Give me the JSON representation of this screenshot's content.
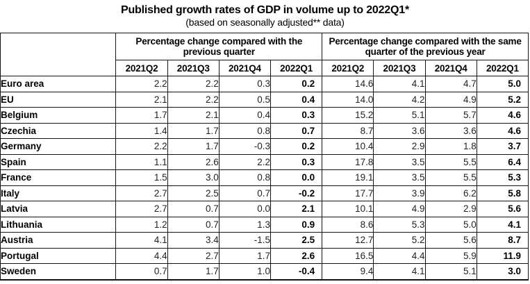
{
  "title": "Published growth rates of GDP in volume up to 2022Q1*",
  "subtitle": "(based on seasonally adjusted** data)",
  "table": {
    "groups": [
      "Percentage change compared with the previous quarter",
      "Percentage change compared with the same quarter of the previous year"
    ],
    "periods": [
      "2021Q2",
      "2021Q3",
      "2021Q4",
      "2022Q1",
      "2021Q2",
      "2021Q3",
      "2021Q4",
      "2022Q1"
    ],
    "rows": [
      {
        "country": "Euro area",
        "values": [
          "2.2",
          "2.2",
          "0.3",
          "0.2",
          "14.6",
          "4.1",
          "4.7",
          "5.0"
        ]
      },
      {
        "country": "EU",
        "values": [
          "2.1",
          "2.2",
          "0.5",
          "0.4",
          "14.0",
          "4.2",
          "4.9",
          "5.2"
        ]
      },
      {
        "country": "Belgium",
        "values": [
          "1.7",
          "2.1",
          "0.4",
          "0.3",
          "15.2",
          "5.1",
          "5.7",
          "4.6"
        ]
      },
      {
        "country": "Czechia",
        "values": [
          "1.4",
          "1.7",
          "0.8",
          "0.7",
          "8.7",
          "3.6",
          "3.6",
          "4.6"
        ]
      },
      {
        "country": "Germany",
        "values": [
          "2.2",
          "1.7",
          "-0.3",
          "0.2",
          "10.4",
          "2.9",
          "1.8",
          "3.7"
        ]
      },
      {
        "country": "Spain",
        "values": [
          "1.1",
          "2.6",
          "2.2",
          "0.3",
          "17.8",
          "3.5",
          "5.5",
          "6.4"
        ]
      },
      {
        "country": "France",
        "values": [
          "1.5",
          "3.0",
          "0.8",
          "0.0",
          "19.1",
          "3.5",
          "5.5",
          "5.3"
        ]
      },
      {
        "country": "Italy",
        "values": [
          "2.7",
          "2.5",
          "0.7",
          "-0.2",
          "17.7",
          "3.9",
          "6.2",
          "5.8"
        ]
      },
      {
        "country": "Latvia",
        "values": [
          "2.7",
          "0.7",
          "0.0",
          "2.1",
          "10.1",
          "4.9",
          "2.9",
          "5.6"
        ]
      },
      {
        "country": "Lithuania",
        "values": [
          "1.2",
          "0.7",
          "1.3",
          "0.9",
          "8.6",
          "5.3",
          "5.0",
          "4.1"
        ]
      },
      {
        "country": "Austria",
        "values": [
          "4.1",
          "3.4",
          "-1.5",
          "2.5",
          "12.7",
          "5.2",
          "5.6",
          "8.7"
        ]
      },
      {
        "country": "Portugal",
        "values": [
          "4.4",
          "2.7",
          "1.7",
          "2.6",
          "16.5",
          "4.4",
          "5.9",
          "11.9"
        ]
      },
      {
        "country": "Sweden",
        "values": [
          "0.7",
          "1.7",
          "1.0",
          "-0.4",
          "9.4",
          "4.1",
          "5.1",
          "3.0"
        ]
      }
    ]
  }
}
